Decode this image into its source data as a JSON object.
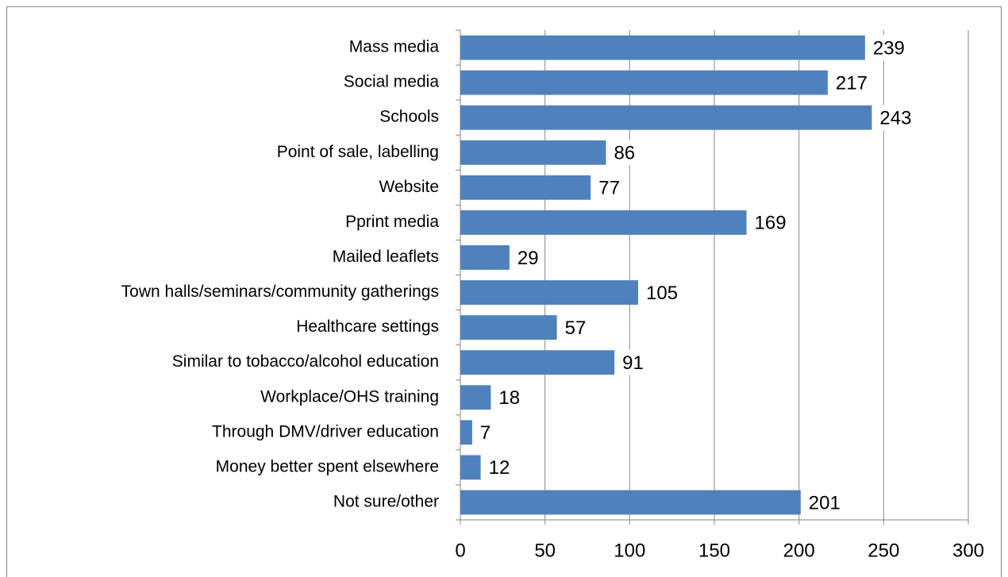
{
  "chart_data": {
    "type": "bar",
    "orientation": "horizontal",
    "categories": [
      "Mass media",
      "Social media",
      "Schools",
      "Point of sale, labelling",
      "Website",
      "Pprint media",
      "Mailed leaflets",
      "Town halls/seminars/community gatherings",
      "Healthcare settings",
      "Similar to tobacco/alcohol education",
      "Workplace/OHS training",
      "Through DMV/driver education",
      "Money better spent elsewhere",
      "Not sure/other"
    ],
    "values": [
      239,
      217,
      243,
      86,
      77,
      169,
      29,
      105,
      57,
      91,
      18,
      7,
      12,
      201
    ],
    "color": "#4f81bd",
    "xlim": [
      0,
      300
    ],
    "xticks": [
      0,
      50,
      100,
      150,
      200,
      250,
      300
    ],
    "grid": true
  }
}
